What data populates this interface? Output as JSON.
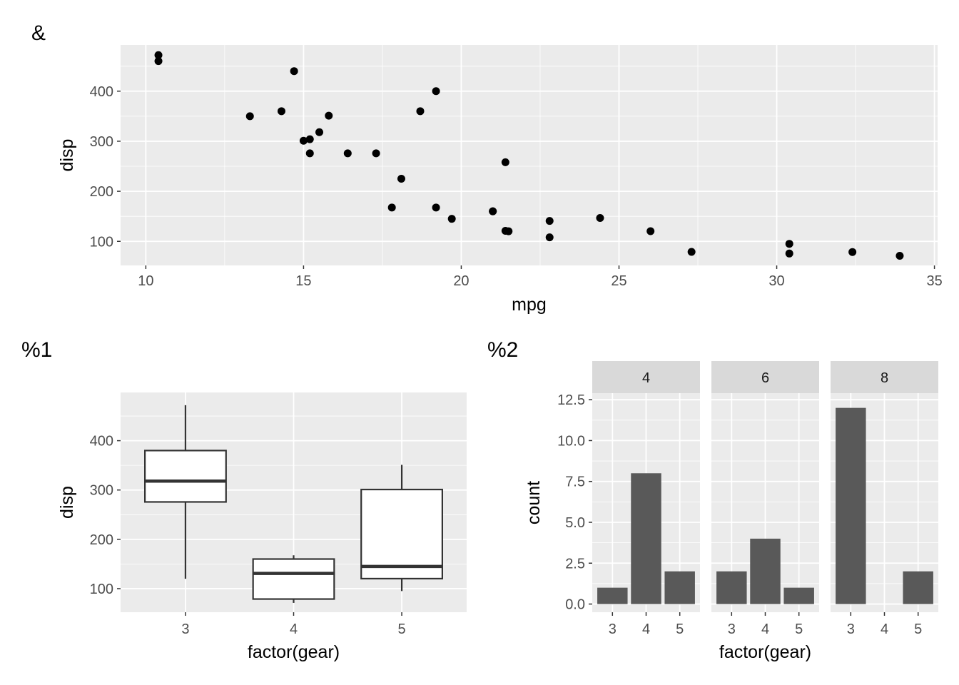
{
  "tags": {
    "a": "&",
    "b": "%1",
    "c": "%2"
  },
  "colors": {
    "panel_bg": "#EBEBEB",
    "grid": "#FFFFFF",
    "strip_bg": "#D9D9D9",
    "bar_fill": "#595959",
    "box_line": "#333333",
    "point": "#000000",
    "tick_text": "#4D4D4D",
    "axis_title": "#000000"
  },
  "chart_data": [
    {
      "type": "scatter",
      "xlabel": "mpg",
      "ylabel": "disp",
      "xlim": [
        9.2,
        35.1
      ],
      "ylim": [
        51.9,
        492.3
      ],
      "x_ticks": [
        10,
        15,
        20,
        25,
        30,
        35
      ],
      "x_tick_labels": [
        "10",
        "15",
        "20",
        "25",
        "30",
        "35"
      ],
      "y_ticks": [
        100,
        200,
        300,
        400
      ],
      "y_tick_labels": [
        "100",
        "200",
        "300",
        "400"
      ],
      "grid": true,
      "points": [
        [
          21.0,
          160
        ],
        [
          21.0,
          160
        ],
        [
          22.8,
          108
        ],
        [
          21.4,
          258
        ],
        [
          18.7,
          360
        ],
        [
          18.1,
          225
        ],
        [
          14.3,
          360
        ],
        [
          24.4,
          146.7
        ],
        [
          22.8,
          140.8
        ],
        [
          19.2,
          167.6
        ],
        [
          17.8,
          167.6
        ],
        [
          16.4,
          275.8
        ],
        [
          17.3,
          275.8
        ],
        [
          15.2,
          275.8
        ],
        [
          10.4,
          472
        ],
        [
          10.4,
          460
        ],
        [
          14.7,
          440
        ],
        [
          32.4,
          78.7
        ],
        [
          30.4,
          75.7
        ],
        [
          33.9,
          71.1
        ],
        [
          21.5,
          120.1
        ],
        [
          15.5,
          318
        ],
        [
          15.2,
          304
        ],
        [
          13.3,
          350
        ],
        [
          19.2,
          400
        ],
        [
          27.3,
          79
        ],
        [
          26.0,
          120.3
        ],
        [
          30.4,
          95.1
        ],
        [
          15.8,
          351
        ],
        [
          19.7,
          145
        ],
        [
          15.0,
          301
        ],
        [
          21.4,
          121
        ]
      ]
    },
    {
      "type": "box",
      "xlabel": "factor(gear)",
      "ylabel": "disp",
      "categories": [
        "3",
        "4",
        "5"
      ],
      "ylim": [
        52.2,
        497.8
      ],
      "y_ticks": [
        100,
        200,
        300,
        400
      ],
      "y_tick_labels": [
        "100",
        "200",
        "300",
        "400"
      ],
      "grid": true,
      "boxes": [
        {
          "category": "3",
          "min": 120.1,
          "q1": 275.8,
          "median": 318,
          "q3": 380,
          "max": 472
        },
        {
          "category": "4",
          "min": 71.1,
          "q1": 78.9,
          "median": 130.9,
          "q3": 160,
          "max": 167.6
        },
        {
          "category": "5",
          "min": 95.1,
          "q1": 120.3,
          "median": 145,
          "q3": 301,
          "max": 351
        }
      ]
    },
    {
      "type": "bar",
      "xlabel": "factor(gear)",
      "ylabel": "count",
      "categories": [
        "3",
        "4",
        "5"
      ],
      "ylim": [
        -0.5,
        12.9
      ],
      "y_ticks": [
        0,
        2.5,
        5,
        7.5,
        10,
        12.5
      ],
      "y_tick_labels": [
        "0.0",
        "2.5",
        "5.0",
        "7.5",
        "10.0",
        "12.5"
      ],
      "grid": true,
      "facets": [
        {
          "strip": "4",
          "values": [
            1,
            8,
            2
          ]
        },
        {
          "strip": "6",
          "values": [
            2,
            4,
            1
          ]
        },
        {
          "strip": "8",
          "values": [
            12,
            0,
            2
          ]
        }
      ]
    }
  ]
}
